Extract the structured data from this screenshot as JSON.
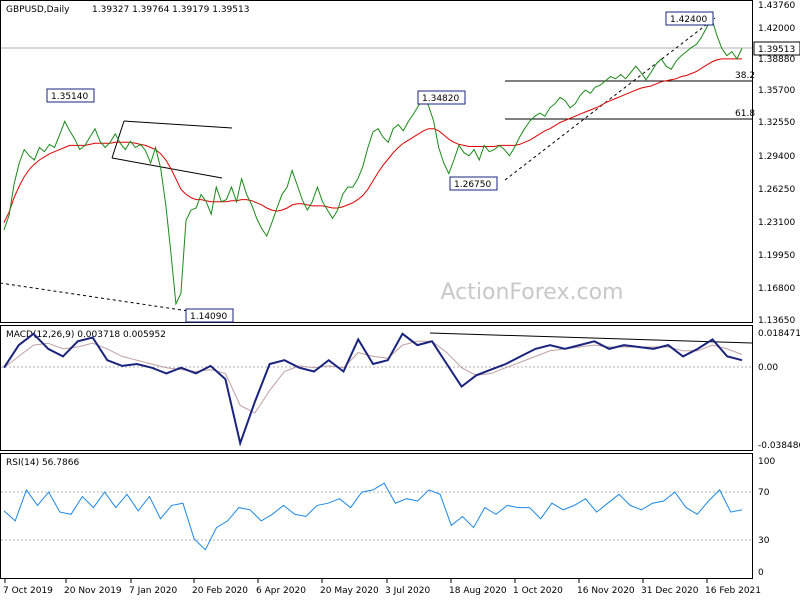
{
  "chart_data": {
    "type": "line",
    "header": {
      "symbol": "GBPUSD,Daily",
      "ohlc": "1.39327 1.39764 1.39179 1.39513"
    },
    "watermark": "ActionForex.com",
    "x_tick_labels": [
      "7 Oct 2019",
      "20 Nov 2019",
      "7 Jan 2020",
      "20 Feb 2020",
      "6 Apr 2020",
      "20 May 2020",
      "3 Jul 2020",
      "18 Aug 2020",
      "1 Oct 2020",
      "16 Nov 2020",
      "31 Dec 2020",
      "16 Feb 2021"
    ],
    "price_panel": {
      "ylim": [
        1.1365,
        1.4376
      ],
      "y_ticks": [
        "1.43760",
        "1.42000",
        "1.38880",
        "1.35700",
        "1.32550",
        "1.29400",
        "1.26250",
        "1.23100",
        "1.19950",
        "1.16800",
        "1.13650"
      ],
      "last_price": "1.39513",
      "annotations": [
        "1.35140",
        "1.14090",
        "1.34820",
        "1.26750",
        "1.42400"
      ],
      "fib_labels": [
        "38.2",
        "61.8"
      ],
      "fib_levels": [
        1.3653,
        1.3281
      ],
      "ma_color": "#e00000",
      "price_color": "#1a8a1a"
    },
    "macd_panel": {
      "title": "MACD(12,26,9) 0.003718 0.005952",
      "y_ticks": [
        "0.018471",
        "0.00",
        "-0.038486"
      ],
      "ylim": [
        -0.042,
        0.02
      ],
      "macd_color": "#1a237e",
      "signal_color": "#c0a0a0",
      "macd": [
        0.0,
        0.012,
        0.018,
        0.01,
        0.006,
        0.014,
        0.016,
        0.004,
        0.001,
        0.002,
        0.0,
        -0.003,
        0.0,
        -0.003,
        0.001,
        -0.006,
        -0.04,
        -0.018,
        0.002,
        0.004,
        0.0,
        -0.002,
        0.004,
        -0.002,
        0.015,
        0.002,
        0.004,
        0.018,
        0.012,
        0.014,
        0.002,
        -0.01,
        -0.004,
        -0.001,
        0.002,
        0.006,
        0.01,
        0.012,
        0.01,
        0.012,
        0.014,
        0.01,
        0.012,
        0.011,
        0.01,
        0.012,
        0.006,
        0.01,
        0.015,
        0.006,
        0.004
      ],
      "signal": [
        0.0,
        0.006,
        0.012,
        0.013,
        0.01,
        0.011,
        0.013,
        0.01,
        0.006,
        0.004,
        0.002,
        0.0,
        -0.001,
        -0.002,
        -0.001,
        -0.003,
        -0.02,
        -0.024,
        -0.012,
        -0.002,
        0.001,
        0.0,
        0.001,
        0.0,
        0.008,
        0.006,
        0.005,
        0.012,
        0.014,
        0.014,
        0.008,
        0.0,
        -0.004,
        -0.003,
        0.0,
        0.003,
        0.006,
        0.009,
        0.01,
        0.011,
        0.012,
        0.011,
        0.011,
        0.011,
        0.011,
        0.011,
        0.009,
        0.009,
        0.012,
        0.01,
        0.007
      ]
    },
    "rsi_panel": {
      "title": "RSI(14) 56.7866",
      "y_ticks": [
        "100",
        "70",
        "30",
        "0"
      ],
      "ylim": [
        0,
        100
      ],
      "levels": [
        70,
        30
      ],
      "rsi_color": "#1e88e5",
      "rsi": [
        55,
        46,
        74,
        60,
        72,
        54,
        52,
        68,
        58,
        72,
        58,
        70,
        55,
        68,
        48,
        60,
        62,
        30,
        20,
        40,
        46,
        58,
        56,
        46,
        52,
        60,
        52,
        50,
        60,
        62,
        66,
        58,
        72,
        74,
        80,
        62,
        66,
        64,
        74,
        70,
        42,
        50,
        40,
        58,
        52,
        60,
        58,
        58,
        48,
        62,
        56,
        60,
        66,
        54,
        62,
        70,
        60,
        56,
        62,
        64,
        72,
        58,
        52,
        64,
        74,
        54,
        56
      ]
    },
    "price_series": [
      1.221,
      1.235,
      1.265,
      1.285,
      1.298,
      1.292,
      1.288,
      1.3,
      1.296,
      1.303,
      1.3,
      1.312,
      1.325,
      1.316,
      1.308,
      1.298,
      1.302,
      1.31,
      1.318,
      1.306,
      1.3,
      1.305,
      1.313,
      1.304,
      1.298,
      1.306,
      1.3,
      1.303,
      1.297,
      1.285,
      1.3,
      1.28,
      1.245,
      1.2,
      1.15,
      1.16,
      1.23,
      1.24,
      1.242,
      1.255,
      1.248,
      1.236,
      1.262,
      1.248,
      1.25,
      1.262,
      1.248,
      1.27,
      1.255,
      1.245,
      1.232,
      1.222,
      1.215,
      1.228,
      1.242,
      1.255,
      1.262,
      1.278,
      1.264,
      1.25,
      1.24,
      1.248,
      1.262,
      1.248,
      1.24,
      1.232,
      1.24,
      1.255,
      1.262,
      1.262,
      1.27,
      1.282,
      1.3,
      1.315,
      1.318,
      1.31,
      1.305,
      1.318,
      1.322,
      1.316,
      1.325,
      1.332,
      1.34,
      1.348,
      1.34,
      1.325,
      1.3,
      1.285,
      1.275,
      1.288,
      1.302,
      1.295,
      1.292,
      1.298,
      1.288,
      1.302,
      1.296,
      1.298,
      1.302,
      1.298,
      1.292,
      1.3,
      1.31,
      1.318,
      1.325,
      1.33,
      1.333,
      1.33,
      1.338,
      1.342,
      1.348,
      1.345,
      1.338,
      1.342,
      1.35,
      1.355,
      1.352,
      1.358,
      1.36,
      1.364,
      1.368,
      1.366,
      1.37,
      1.366,
      1.372,
      1.378,
      1.372,
      1.365,
      1.372,
      1.38,
      1.385,
      1.378,
      1.375,
      1.383,
      1.388,
      1.392,
      1.396,
      1.399,
      1.406,
      1.415,
      1.424,
      1.408,
      1.395,
      1.388,
      1.392,
      1.385,
      1.395
    ],
    "ma_series": [
      1.228,
      1.238,
      1.252,
      1.263,
      1.272,
      1.279,
      1.284,
      1.288,
      1.291,
      1.294,
      1.296,
      1.298,
      1.3,
      1.302,
      1.302,
      1.302,
      1.302,
      1.303,
      1.304,
      1.304,
      1.304,
      1.304,
      1.305,
      1.305,
      1.305,
      1.305,
      1.304,
      1.303,
      1.302,
      1.3,
      1.298,
      1.294,
      1.288,
      1.28,
      1.27,
      1.26,
      1.255,
      1.252,
      1.25,
      1.25,
      1.249,
      1.248,
      1.248,
      1.248,
      1.248,
      1.249,
      1.249,
      1.25,
      1.25,
      1.249,
      1.247,
      1.245,
      1.242,
      1.24,
      1.239,
      1.24,
      1.242,
      1.245,
      1.246,
      1.246,
      1.245,
      1.244,
      1.244,
      1.244,
      1.243,
      1.242,
      1.242,
      1.243,
      1.245,
      1.247,
      1.25,
      1.254,
      1.26,
      1.268,
      1.276,
      1.283,
      1.289,
      1.295,
      1.3,
      1.304,
      1.307,
      1.31,
      1.313,
      1.316,
      1.318,
      1.318,
      1.316,
      1.312,
      1.308,
      1.305,
      1.303,
      1.302,
      1.301,
      1.301,
      1.301,
      1.301,
      1.301,
      1.301,
      1.302,
      1.302,
      1.302,
      1.302,
      1.303,
      1.305,
      1.307,
      1.31,
      1.313,
      1.316,
      1.318,
      1.321,
      1.324,
      1.326,
      1.328,
      1.33,
      1.332,
      1.334,
      1.336,
      1.338,
      1.34,
      1.343,
      1.345,
      1.347,
      1.349,
      1.351,
      1.353,
      1.355,
      1.357,
      1.358,
      1.359,
      1.361,
      1.363,
      1.364,
      1.365,
      1.366,
      1.368,
      1.369,
      1.371,
      1.373,
      1.376,
      1.379,
      1.382,
      1.384,
      1.385,
      1.385,
      1.385,
      1.385,
      1.385
    ]
  }
}
